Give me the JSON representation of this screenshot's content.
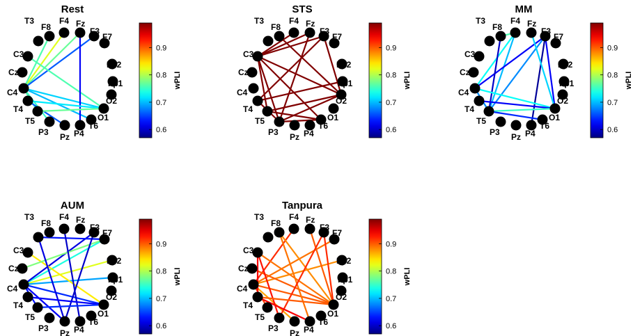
{
  "chart_data": {
    "type": "connectivity-network",
    "colorbar": {
      "label": "wPLI",
      "ticks": [
        "0.6",
        "0.7",
        "0.8",
        "0.9"
      ],
      "range": [
        0.57,
        0.99
      ],
      "colormap": "jet"
    },
    "electrodes": [
      "T3",
      "F8",
      "F4",
      "Fz",
      "F3",
      "F7",
      "Fp2",
      "Fp1",
      "O2",
      "O1",
      "T6",
      "P4",
      "Pz",
      "P3",
      "T5",
      "T4",
      "C4",
      "Cz",
      "C3"
    ],
    "electrode_labels": [
      "T3",
      "F8",
      "F4",
      "Fz",
      "F3",
      "F7",
      "Fp2",
      "Fp1",
      "O2",
      "O1",
      "T6",
      "P4",
      "Pz",
      "P3",
      "T5",
      "T4",
      "C4",
      "Cz",
      "C3"
    ],
    "panels": [
      {
        "title": "Rest",
        "edges": [
          {
            "from": "C4",
            "to": "F4",
            "wpli": 0.82
          },
          {
            "from": "C4",
            "to": "Fz",
            "wpli": 0.77
          },
          {
            "from": "C4",
            "to": "F8",
            "wpli": 0.76
          },
          {
            "from": "C4",
            "to": "O1",
            "wpli": 0.71
          },
          {
            "from": "C4",
            "to": "T6",
            "wpli": 0.7
          },
          {
            "from": "C4",
            "to": "P3",
            "wpli": 0.75
          },
          {
            "from": "C4",
            "to": "T5",
            "wpli": 0.76
          },
          {
            "from": "C4",
            "to": "F3",
            "wpli": 0.66
          },
          {
            "from": "C3",
            "to": "O1",
            "wpli": 0.76
          },
          {
            "from": "Fz",
            "to": "P4",
            "wpli": 0.62
          },
          {
            "from": "T4",
            "to": "O1",
            "wpli": 0.72
          },
          {
            "from": "T4",
            "to": "Pz",
            "wpli": 0.66
          },
          {
            "from": "T5",
            "to": "O1",
            "wpli": 0.77
          }
        ]
      },
      {
        "title": "STS",
        "edges": [
          {
            "from": "C3",
            "to": "F3",
            "wpli": 0.99
          },
          {
            "from": "C3",
            "to": "Fz",
            "wpli": 0.99
          },
          {
            "from": "C3",
            "to": "F4",
            "wpli": 0.99
          },
          {
            "from": "C3",
            "to": "O2",
            "wpli": 0.99
          },
          {
            "from": "C3",
            "to": "T6",
            "wpli": 0.99
          },
          {
            "from": "C3",
            "to": "T5",
            "wpli": 0.99
          },
          {
            "from": "C3",
            "to": "P3",
            "wpli": 0.99
          },
          {
            "from": "F8",
            "to": "O2",
            "wpli": 0.99
          },
          {
            "from": "Fz",
            "to": "P3",
            "wpli": 0.99
          },
          {
            "from": "F3",
            "to": "O2",
            "wpli": 0.99
          },
          {
            "from": "F3",
            "to": "T4",
            "wpli": 0.99
          },
          {
            "from": "Fp1",
            "to": "T4",
            "wpli": 0.99
          },
          {
            "from": "O2",
            "to": "T5",
            "wpli": 0.99
          },
          {
            "from": "O2",
            "to": "P3",
            "wpli": 0.99
          },
          {
            "from": "T6",
            "to": "P3",
            "wpli": 0.99
          },
          {
            "from": "T6",
            "to": "T5",
            "wpli": 0.99
          },
          {
            "from": "P3",
            "to": "T4",
            "wpli": 0.99
          }
        ]
      },
      {
        "title": "MM",
        "edges": [
          {
            "from": "F4",
            "to": "C4",
            "wpli": 0.73
          },
          {
            "from": "F4",
            "to": "T5",
            "wpli": 0.7
          },
          {
            "from": "F4",
            "to": "F8",
            "wpli": 0.76
          },
          {
            "from": "F3",
            "to": "C4",
            "wpli": 0.62
          },
          {
            "from": "F3",
            "to": "T5",
            "wpli": 0.68
          },
          {
            "from": "F3",
            "to": "O1",
            "wpli": 0.62
          },
          {
            "from": "F3",
            "to": "P4",
            "wpli": 0.58
          },
          {
            "from": "F8",
            "to": "T5",
            "wpli": 0.6
          },
          {
            "from": "Fz",
            "to": "O1",
            "wpli": 0.71
          },
          {
            "from": "C4",
            "to": "O1",
            "wpli": 0.73
          },
          {
            "from": "T4",
            "to": "O1",
            "wpli": 0.62
          },
          {
            "from": "T5",
            "to": "O1",
            "wpli": 0.75
          },
          {
            "from": "T6",
            "to": "T5",
            "wpli": 0.64
          },
          {
            "from": "C4",
            "to": "T5",
            "wpli": 0.68
          }
        ]
      },
      {
        "title": "AUM",
        "edges": [
          {
            "from": "C4",
            "to": "Fp2",
            "wpli": 0.82
          },
          {
            "from": "C4",
            "to": "F7",
            "wpli": 0.74
          },
          {
            "from": "C4",
            "to": "Fp1",
            "wpli": 0.69
          },
          {
            "from": "C4",
            "to": "O1",
            "wpli": 0.64
          },
          {
            "from": "C4",
            "to": "Pz",
            "wpli": 0.62
          },
          {
            "from": "C4",
            "to": "T5",
            "wpli": 0.63
          },
          {
            "from": "C4",
            "to": "F3",
            "wpli": 0.61
          },
          {
            "from": "C3",
            "to": "O1",
            "wpli": 0.84
          },
          {
            "from": "Cz",
            "to": "F7",
            "wpli": 0.78
          },
          {
            "from": "T3",
            "to": "F7",
            "wpli": 0.63
          },
          {
            "from": "T3",
            "to": "Pz",
            "wpli": 0.61
          },
          {
            "from": "F4",
            "to": "P4",
            "wpli": 0.6
          },
          {
            "from": "F3",
            "to": "Pz",
            "wpli": 0.6
          },
          {
            "from": "T4",
            "to": "O1",
            "wpli": 0.62
          },
          {
            "from": "T5",
            "to": "O1",
            "wpli": 0.64
          }
        ]
      },
      {
        "title": "Tanpura",
        "edges": [
          {
            "from": "C4",
            "to": "F4",
            "wpli": 0.92
          },
          {
            "from": "C4",
            "to": "F7",
            "wpli": 0.89
          },
          {
            "from": "C4",
            "to": "Fp2",
            "wpli": 0.88
          },
          {
            "from": "C4",
            "to": "O1",
            "wpli": 0.9
          },
          {
            "from": "C4",
            "to": "Pz",
            "wpli": 0.87
          },
          {
            "from": "C4",
            "to": "T5",
            "wpli": 0.91
          },
          {
            "from": "Cz",
            "to": "O1",
            "wpli": 0.9
          },
          {
            "from": "C3",
            "to": "O1",
            "wpli": 0.89
          },
          {
            "from": "C3",
            "to": "P3",
            "wpli": 0.93
          },
          {
            "from": "C3",
            "to": "T4",
            "wpli": 0.94
          },
          {
            "from": "F8",
            "to": "P4",
            "wpli": 0.89
          },
          {
            "from": "F8",
            "to": "O1",
            "wpli": 0.88
          },
          {
            "from": "Fz",
            "to": "O1",
            "wpli": 0.9
          },
          {
            "from": "F3",
            "to": "O1",
            "wpli": 0.92
          },
          {
            "from": "F3",
            "to": "P3",
            "wpli": 0.92
          },
          {
            "from": "T4",
            "to": "O1",
            "wpli": 0.9
          },
          {
            "from": "T4",
            "to": "P4",
            "wpli": 0.94
          }
        ]
      }
    ]
  }
}
